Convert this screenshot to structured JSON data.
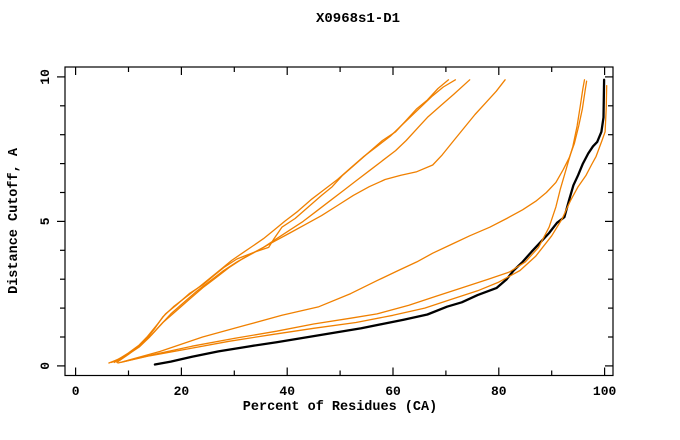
{
  "title": "X0968s1-D1",
  "colors": {
    "model_line": "#000000",
    "comparison_line": "#f08000",
    "frame": "#000000",
    "background": "#ffffff"
  },
  "chart_data": {
    "type": "line",
    "title": "X0968s1-D1",
    "xlabel": "Percent of Residues (CA)",
    "ylabel": "Distance Cutoff, A",
    "xlim": [
      0,
      100
    ],
    "ylim": [
      0,
      10
    ],
    "grid": false,
    "legend": "none",
    "x_axis": {
      "major_ticks": [
        0,
        20,
        40,
        60,
        80,
        100
      ],
      "major_tick_labels": [
        "0",
        "20",
        "40",
        "60",
        "80",
        "100"
      ],
      "minor_ticks": [
        10,
        30,
        50,
        70,
        90
      ]
    },
    "y_axis": {
      "major_ticks": [
        0,
        5,
        10
      ],
      "major_tick_labels": [
        "0",
        "5",
        "10"
      ],
      "minor_ticks": [
        1,
        2,
        3,
        4,
        6,
        7,
        8,
        9
      ]
    },
    "series": [
      {
        "name": "model-black",
        "color": "#000000",
        "width": 2.3,
        "points": [
          [
            15,
            0.05
          ],
          [
            18,
            0.15
          ],
          [
            22,
            0.32
          ],
          [
            27,
            0.5
          ],
          [
            33,
            0.68
          ],
          [
            38,
            0.82
          ],
          [
            44,
            1.0
          ],
          [
            50,
            1.18
          ],
          [
            54,
            1.3
          ],
          [
            58,
            1.45
          ],
          [
            62,
            1.6
          ],
          [
            66.5,
            1.78
          ],
          [
            70.2,
            2.05
          ],
          [
            73,
            2.2
          ],
          [
            76,
            2.45
          ],
          [
            79.6,
            2.7
          ],
          [
            81.5,
            3.0
          ],
          [
            82.8,
            3.3
          ],
          [
            84.5,
            3.6
          ],
          [
            86.2,
            3.95
          ],
          [
            88,
            4.3
          ],
          [
            89.5,
            4.6
          ],
          [
            91,
            4.95
          ],
          [
            92.4,
            5.15
          ],
          [
            93.3,
            5.75
          ],
          [
            94.1,
            6.25
          ],
          [
            95,
            6.6
          ],
          [
            95.9,
            7.0
          ],
          [
            96.9,
            7.35
          ],
          [
            97.8,
            7.6
          ],
          [
            98.6,
            7.75
          ],
          [
            99.4,
            8.1
          ],
          [
            99.8,
            8.6
          ],
          [
            99.9,
            9.9
          ]
        ]
      },
      {
        "name": "orange-1",
        "color": "#f08000",
        "width": 1.3,
        "points": [
          [
            6.3,
            0.1
          ],
          [
            8,
            0.22
          ],
          [
            10,
            0.45
          ],
          [
            12,
            0.72
          ],
          [
            13.5,
            1.0
          ],
          [
            15.5,
            1.45
          ],
          [
            17,
            1.8
          ],
          [
            19,
            2.1
          ],
          [
            21.5,
            2.5
          ],
          [
            24,
            2.8
          ],
          [
            26,
            3.1
          ],
          [
            28,
            3.4
          ],
          [
            30.5,
            3.7
          ],
          [
            34,
            3.95
          ],
          [
            36.5,
            4.1
          ],
          [
            37.5,
            4.4
          ],
          [
            39,
            4.8
          ],
          [
            41.5,
            5.1
          ],
          [
            44,
            5.5
          ],
          [
            46.5,
            5.9
          ],
          [
            48.5,
            6.2
          ],
          [
            50.5,
            6.6
          ],
          [
            53,
            7.0
          ],
          [
            55.5,
            7.4
          ],
          [
            58,
            7.8
          ],
          [
            60.5,
            8.1
          ],
          [
            62.5,
            8.5
          ],
          [
            64.5,
            8.9
          ],
          [
            66.5,
            9.2
          ],
          [
            68.5,
            9.6
          ],
          [
            70.5,
            9.9
          ]
        ]
      },
      {
        "name": "orange-2",
        "color": "#f08000",
        "width": 1.3,
        "points": [
          [
            6.8,
            0.12
          ],
          [
            9,
            0.32
          ],
          [
            11.5,
            0.6
          ],
          [
            13.5,
            0.95
          ],
          [
            15,
            1.3
          ],
          [
            16.5,
            1.7
          ],
          [
            18.5,
            2.05
          ],
          [
            21,
            2.4
          ],
          [
            23.5,
            2.75
          ],
          [
            25.5,
            3.05
          ],
          [
            27.5,
            3.35
          ],
          [
            29.5,
            3.65
          ],
          [
            31.5,
            3.9
          ],
          [
            33.5,
            4.15
          ],
          [
            35.5,
            4.4
          ],
          [
            37.5,
            4.7
          ],
          [
            39.5,
            5.0
          ],
          [
            42,
            5.35
          ],
          [
            44.5,
            5.75
          ],
          [
            47,
            6.1
          ],
          [
            49.5,
            6.45
          ],
          [
            52,
            6.85
          ],
          [
            54.5,
            7.25
          ],
          [
            57,
            7.6
          ],
          [
            59.5,
            7.95
          ],
          [
            61.5,
            8.3
          ],
          [
            63.5,
            8.65
          ],
          [
            65.5,
            9.0
          ],
          [
            67.5,
            9.35
          ],
          [
            69.5,
            9.65
          ],
          [
            71.8,
            9.9
          ]
        ]
      },
      {
        "name": "orange-3",
        "color": "#f08000",
        "width": 1.3,
        "points": [
          [
            7.3,
            0.12
          ],
          [
            9.5,
            0.35
          ],
          [
            12,
            0.65
          ],
          [
            14,
            1.0
          ],
          [
            16,
            1.4
          ],
          [
            18,
            1.8
          ],
          [
            20.5,
            2.2
          ],
          [
            23,
            2.6
          ],
          [
            25.5,
            2.95
          ],
          [
            28,
            3.3
          ],
          [
            30.5,
            3.6
          ],
          [
            33,
            3.85
          ],
          [
            35.5,
            4.1
          ],
          [
            38,
            4.4
          ],
          [
            40.5,
            4.7
          ],
          [
            43,
            5.0
          ],
          [
            45.5,
            5.35
          ],
          [
            48,
            5.7
          ],
          [
            50.5,
            6.05
          ],
          [
            53,
            6.4
          ],
          [
            55.5,
            6.75
          ],
          [
            58,
            7.1
          ],
          [
            60.5,
            7.45
          ],
          [
            62.5,
            7.8
          ],
          [
            64.5,
            8.2
          ],
          [
            66.5,
            8.6
          ],
          [
            69,
            9.0
          ],
          [
            71.5,
            9.4
          ],
          [
            74.5,
            9.9
          ]
        ]
      },
      {
        "name": "orange-4",
        "color": "#f08000",
        "width": 1.3,
        "points": [
          [
            7.8,
            0.12
          ],
          [
            10,
            0.4
          ],
          [
            12.5,
            0.75
          ],
          [
            14.5,
            1.1
          ],
          [
            16.5,
            1.5
          ],
          [
            19,
            1.9
          ],
          [
            21.5,
            2.3
          ],
          [
            24,
            2.7
          ],
          [
            26.5,
            3.05
          ],
          [
            29,
            3.4
          ],
          [
            31.5,
            3.7
          ],
          [
            34.5,
            4.0
          ],
          [
            37.5,
            4.3
          ],
          [
            40.5,
            4.6
          ],
          [
            43.5,
            4.9
          ],
          [
            46.5,
            5.2
          ],
          [
            49.5,
            5.55
          ],
          [
            52.5,
            5.9
          ],
          [
            55.5,
            6.2
          ],
          [
            58.5,
            6.45
          ],
          [
            61.5,
            6.6
          ],
          [
            64.5,
            6.72
          ],
          [
            67.5,
            6.95
          ],
          [
            69.3,
            7.3
          ],
          [
            71.5,
            7.8
          ],
          [
            73.5,
            8.25
          ],
          [
            75.5,
            8.7
          ],
          [
            77.5,
            9.1
          ],
          [
            79.5,
            9.5
          ],
          [
            81.2,
            9.9
          ]
        ]
      },
      {
        "name": "orange-5",
        "color": "#f08000",
        "width": 1.3,
        "points": [
          [
            9,
            0.15
          ],
          [
            16,
            0.5
          ],
          [
            24,
            1.0
          ],
          [
            32,
            1.4
          ],
          [
            39,
            1.75
          ],
          [
            46,
            2.05
          ],
          [
            52,
            2.5
          ],
          [
            57,
            2.95
          ],
          [
            61,
            3.3
          ],
          [
            64.5,
            3.6
          ],
          [
            67.5,
            3.9
          ],
          [
            71,
            4.2
          ],
          [
            74.5,
            4.5
          ],
          [
            78.3,
            4.8
          ],
          [
            81.5,
            5.1
          ],
          [
            84.5,
            5.4
          ],
          [
            87,
            5.7
          ],
          [
            89,
            6.0
          ],
          [
            90.8,
            6.35
          ],
          [
            92.2,
            6.8
          ],
          [
            93.3,
            7.2
          ],
          [
            94.3,
            7.7
          ],
          [
            95.1,
            8.3
          ],
          [
            95.8,
            8.9
          ],
          [
            96.3,
            9.5
          ],
          [
            96.6,
            9.85
          ]
        ]
      },
      {
        "name": "orange-6",
        "color": "#f08000",
        "width": 1.3,
        "points": [
          [
            8.5,
            0.12
          ],
          [
            15,
            0.4
          ],
          [
            22,
            0.68
          ],
          [
            30,
            0.95
          ],
          [
            38,
            1.2
          ],
          [
            45,
            1.45
          ],
          [
            52,
            1.65
          ],
          [
            57,
            1.8
          ],
          [
            63,
            2.1
          ],
          [
            68,
            2.4
          ],
          [
            73,
            2.7
          ],
          [
            78,
            3.0
          ],
          [
            82,
            3.25
          ],
          [
            85,
            3.6
          ],
          [
            87.5,
            4.1
          ],
          [
            89.5,
            4.8
          ],
          [
            90.8,
            5.5
          ],
          [
            91.6,
            6.1
          ],
          [
            92.4,
            6.6
          ],
          [
            93.2,
            7.1
          ],
          [
            94,
            7.6
          ],
          [
            94.8,
            8.3
          ],
          [
            95.4,
            9.0
          ],
          [
            95.9,
            9.6
          ],
          [
            96.2,
            9.9
          ]
        ]
      },
      {
        "name": "orange-7",
        "color": "#f08000",
        "width": 1.3,
        "points": [
          [
            8,
            0.1
          ],
          [
            14,
            0.35
          ],
          [
            21,
            0.58
          ],
          [
            29,
            0.85
          ],
          [
            37,
            1.08
          ],
          [
            45,
            1.3
          ],
          [
            53,
            1.5
          ],
          [
            60,
            1.75
          ],
          [
            66,
            2.0
          ],
          [
            71,
            2.3
          ],
          [
            76,
            2.6
          ],
          [
            80,
            2.9
          ],
          [
            84,
            3.3
          ],
          [
            87,
            3.8
          ],
          [
            90,
            4.5
          ],
          [
            92,
            5.1
          ],
          [
            93.5,
            5.7
          ],
          [
            95,
            6.2
          ],
          [
            96.5,
            6.6
          ],
          [
            97.5,
            6.95
          ],
          [
            98.4,
            7.25
          ],
          [
            99.5,
            7.8
          ],
          [
            100.1,
            8.1
          ],
          [
            100.3,
            8.9
          ],
          [
            100.4,
            9.7
          ]
        ]
      }
    ]
  }
}
